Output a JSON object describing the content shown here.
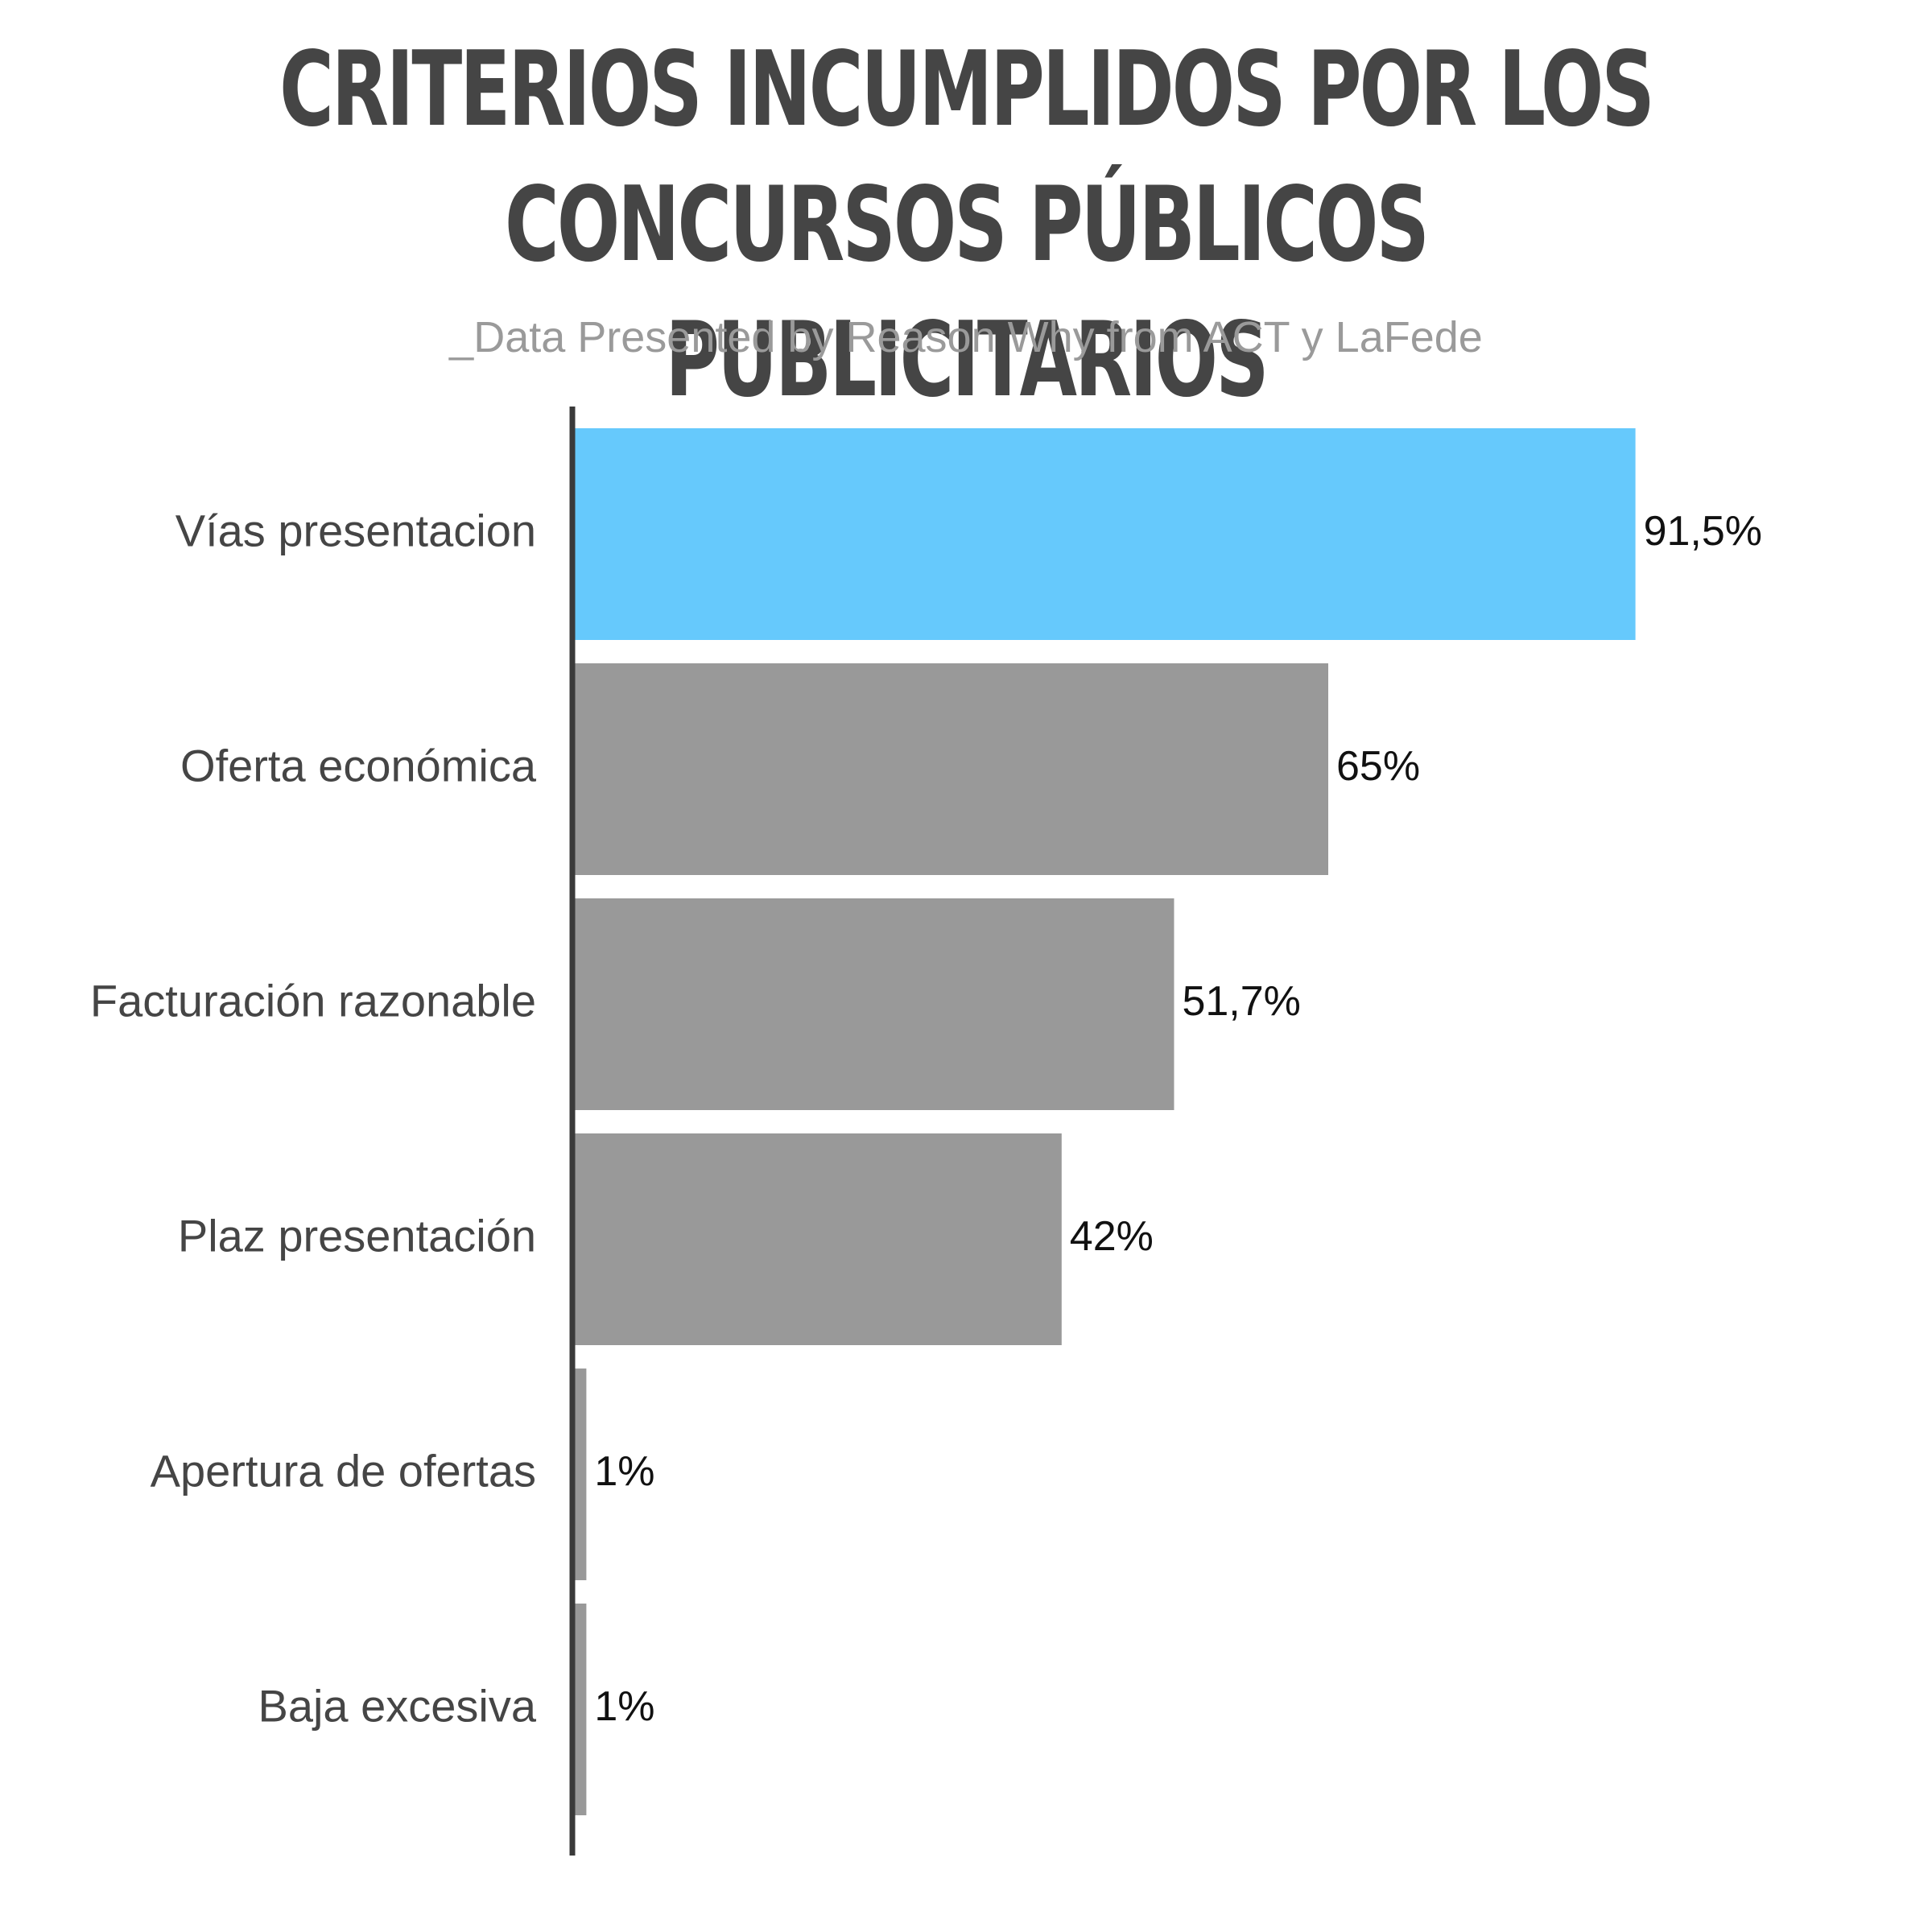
{
  "chart_data": {
    "type": "bar",
    "orientation": "horizontal",
    "title": "CRITERIOS INCUMPLIDOS POR LOS\nCONCURSOS PÚBLICOS PUBLICITARIOS",
    "subtitle": "_Data Presented by Reason Why from ACT y LaFede",
    "categories": [
      "Vías presentacion",
      "Oferta económica",
      "Facturación razonable",
      "Plaz presentación",
      "Apertura de ofertas",
      "Baja excesiva"
    ],
    "values": [
      91.5,
      65,
      51.7,
      42,
      1,
      1
    ],
    "value_labels": [
      "91,5%",
      "65%",
      "51,7%",
      "42%",
      "1%",
      "1%"
    ],
    "xlim": [
      0,
      100
    ],
    "grid": false,
    "legend": "none",
    "highlight_index": 0,
    "colors": {
      "highlight": "#66c9fc",
      "default": "#999999",
      "axis": "#3a3a3a",
      "title": "#454545",
      "subtitle": "#9a9a9a"
    }
  }
}
